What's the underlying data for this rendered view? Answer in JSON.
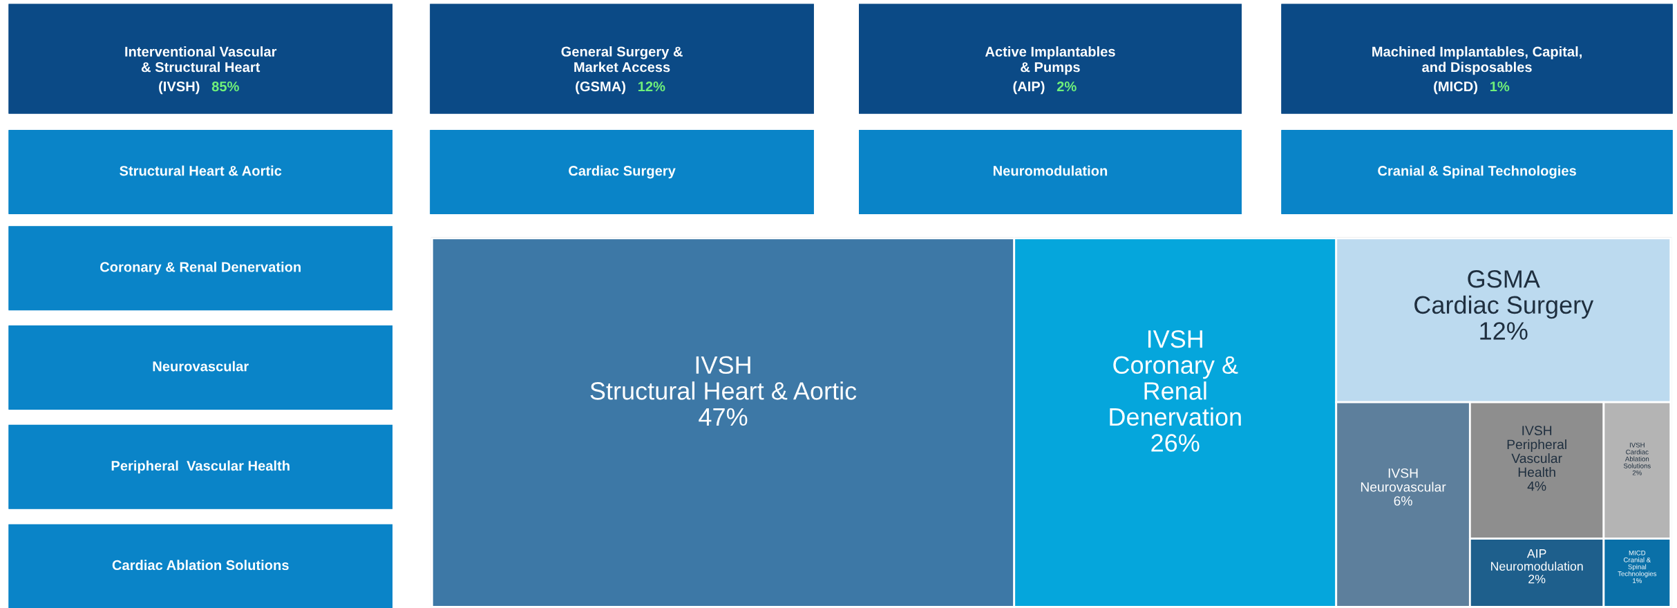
{
  "chart_data": [
    {
      "type": "other",
      "title": "Interventional Vascular\n& Structural Heart\n(IVSH)",
      "annotations": [
        "85%"
      ],
      "categories": [
        "Structural Heart & Aortic",
        "Coronary & Renal Denervation",
        "Neurovascular",
        "Peripheral  Vascular Health",
        "Cardiac Ablation Solutions"
      ],
      "color": "#0b4a86",
      "colors": [
        "#0a84c8",
        "#0a84c8",
        "#0a84c8",
        "#0a84c8",
        "#0a84c8"
      ]
    },
    {
      "type": "other",
      "title": "General Surgery &\nMarket Access\n(GSMA)",
      "annotations": [
        "12%"
      ],
      "categories": [
        "Cardiac Surgery"
      ],
      "color": "#0b4a86",
      "colors": [
        "#0a84c8"
      ]
    },
    {
      "type": "other",
      "title": "Active Implantables\n& Pumps\n(AIP)",
      "annotations": [
        "2%"
      ],
      "categories": [
        "Neuromodulation"
      ],
      "color": "#0b4a86",
      "colors": [
        "#0a84c8"
      ]
    },
    {
      "type": "other",
      "title": "Machined Implantables, Capital,\nand Disposables\n(MICD)",
      "annotations": [
        "1%"
      ],
      "categories": [
        "Cranial & Spinal Technologies"
      ],
      "color": "#0b4a86",
      "colors": [
        "#0a84c8"
      ]
    },
    {
      "type": "other",
      "categories": [
        "IVSH\nStructural Heart & Aortic",
        "IVSH\nCoronary & Renal Denervation",
        "GSMA\nCardiac Surgery",
        "IVSH\nNeurovascular",
        "IVSH\nPeripheral Vascular Health",
        "IVSH\nCardiac Ablation Solutions",
        "AIP\nNeuromodulation",
        "MICD\nCranial & Spinal Technologies"
      ],
      "values": [
        47,
        26,
        12,
        6,
        4,
        2,
        2,
        1
      ],
      "colors": [
        "#3d78a6",
        "#05a6dc",
        "#bcdaef",
        "#5d7f9c",
        "#8e8e8e",
        "#b4b4b4",
        "#1e5f8c",
        "#0a70a8"
      ],
      "value_labels": [
        "47%",
        "26%",
        "12%",
        "6%",
        "4%",
        "2%",
        "2%",
        "1%"
      ]
    }
  ]
}
